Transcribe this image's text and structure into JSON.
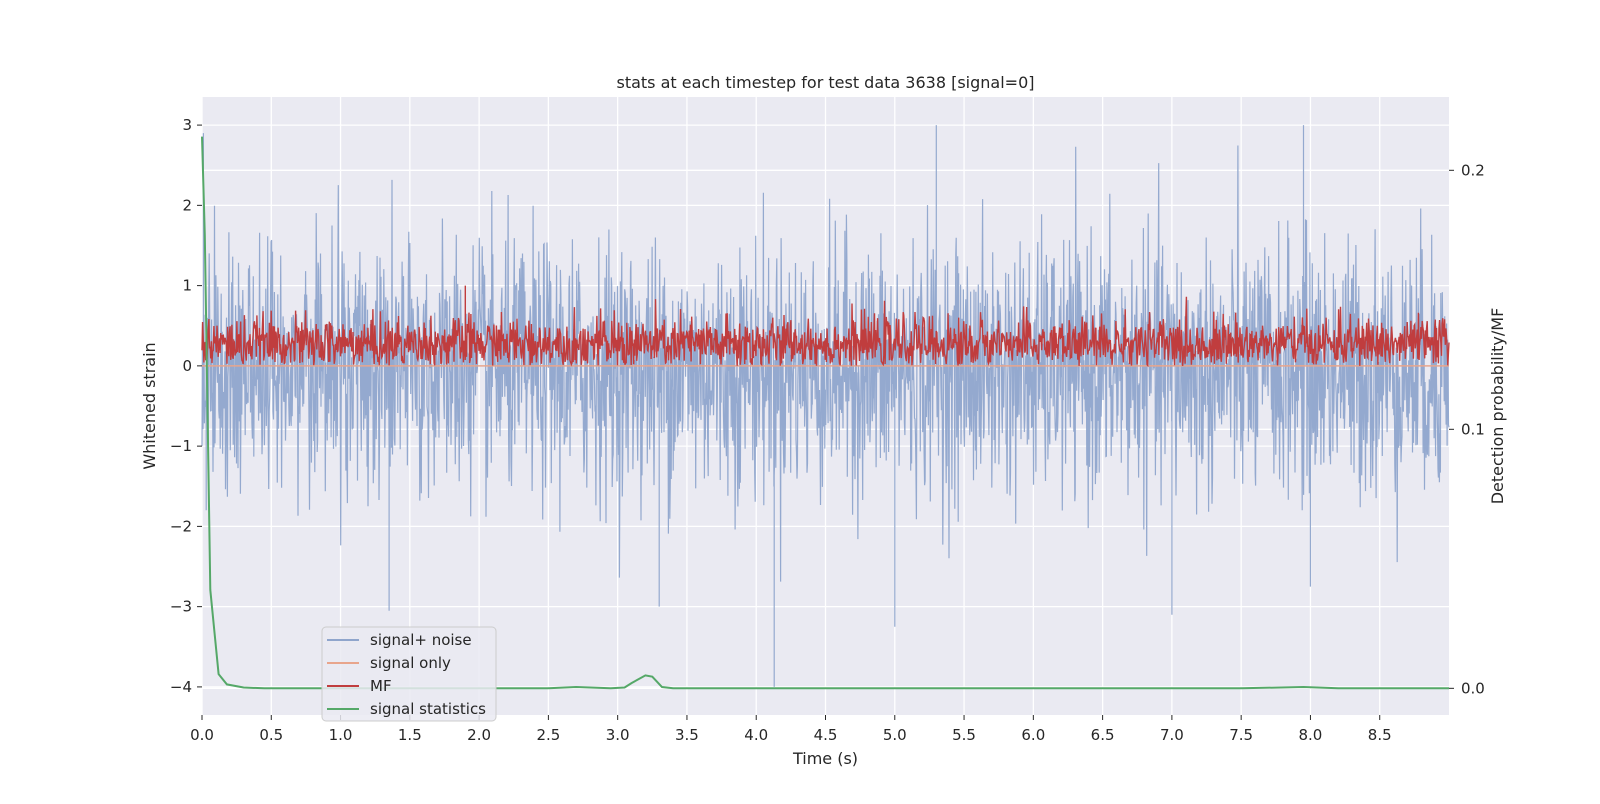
{
  "chart_data": {
    "type": "line",
    "title": "stats at each timestep for test data 3638 [signal=0]",
    "xlabel": "Time (s)",
    "ylabel_left": "Whitened strain",
    "ylabel_right": "Detection probability/MF",
    "xlim": [
      0.0,
      9.0
    ],
    "ylim_left": [
      -4.35,
      3.35
    ],
    "ylim_right": [
      -0.0103,
      0.2283
    ],
    "x_ticks": [
      "0.0",
      "0.5",
      "1.0",
      "1.5",
      "2.0",
      "2.5",
      "3.0",
      "3.5",
      "4.0",
      "4.5",
      "5.0",
      "5.5",
      "6.0",
      "6.5",
      "7.0",
      "7.5",
      "8.0",
      "8.5"
    ],
    "y_ticks_left": [
      "3",
      "2",
      "1",
      "0",
      "−1",
      "−2",
      "−3",
      "−4"
    ],
    "y_ticks_right": [
      "0.2",
      "0.1",
      "0.0"
    ],
    "grid": true,
    "legend": {
      "position": "lower-left",
      "entries": [
        {
          "label": "signal+ noise",
          "color": "#8fa5cc"
        },
        {
          "label": "signal only",
          "color": "#e8a58c"
        },
        {
          "label": "MF",
          "color": "#c03d3e"
        },
        {
          "label": "signal statistics",
          "color": "#55a868"
        }
      ]
    },
    "series": [
      {
        "name": "signal+ noise",
        "axis": "left",
        "description": "whitened strain noise, ~N(0,0.8) sampled densely over 0–9 s",
        "approx_range": [
          -4.0,
          3.0
        ],
        "notable_points": [
          [
            0.01,
            2.9
          ],
          [
            0.03,
            -1.8
          ],
          [
            1.35,
            -3.05
          ],
          [
            3.3,
            -3.0
          ],
          [
            4.13,
            -4.0
          ],
          [
            5.0,
            -3.25
          ],
          [
            5.3,
            3.0
          ],
          [
            7.0,
            -3.1
          ],
          [
            7.95,
            3.0
          ],
          [
            8.0,
            -2.75
          ]
        ]
      },
      {
        "name": "signal only",
        "axis": "left",
        "description": "flat at zero (no signal)",
        "x": [
          0.0,
          9.0
        ],
        "y": [
          0.0,
          0.0
        ]
      },
      {
        "name": "MF",
        "axis": "left",
        "description": "matched-filter output, dense positive band",
        "approx_range": [
          0.0,
          1.0
        ],
        "peak": [
          1.9,
          1.0
        ]
      },
      {
        "name": "signal statistics",
        "axis": "right",
        "x": [
          0.0,
          0.02,
          0.06,
          0.12,
          0.18,
          0.3,
          0.45,
          0.7,
          1.0,
          1.5,
          2.0,
          2.5,
          2.7,
          2.95,
          3.05,
          3.1,
          3.2,
          3.25,
          3.32,
          3.4,
          3.5,
          4.0,
          5.0,
          6.0,
          7.0,
          7.5,
          7.95,
          8.2,
          9.0
        ],
        "y": [
          0.213,
          0.175,
          0.038,
          0.0055,
          0.0015,
          0.0003,
          0.0,
          0.0,
          0.0,
          0.0,
          0.0,
          0.0,
          0.0005,
          0.0,
          0.0003,
          0.002,
          0.005,
          0.0045,
          0.0005,
          0.0,
          0.0,
          0.0,
          0.0,
          0.0,
          0.0,
          0.0,
          0.0005,
          0.0,
          0.0
        ]
      }
    ]
  }
}
